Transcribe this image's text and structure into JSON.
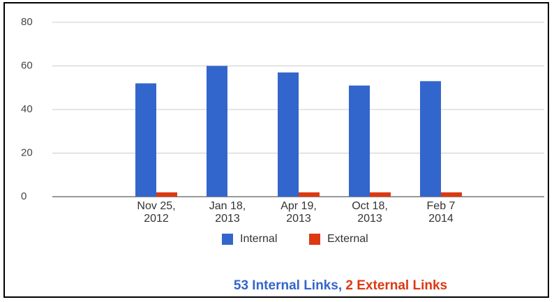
{
  "chart_data": {
    "type": "bar",
    "categories": [
      "Nov 25, 2012",
      "Jan 18, 2013",
      "Apr 19, 2013",
      "Oct 18, 2013",
      "Feb 7 2014"
    ],
    "series": [
      {
        "name": "Internal",
        "color": "#3366cc",
        "values": [
          52,
          60,
          57,
          51,
          53
        ]
      },
      {
        "name": "External",
        "color": "#dc3912",
        "values": [
          2,
          0,
          2,
          2,
          2
        ]
      }
    ],
    "ylim": [
      0,
      80
    ],
    "yticks": [
      0,
      20,
      40,
      60,
      80
    ],
    "grid": true,
    "legend": "bottom",
    "footer": {
      "internal": "53 Internal Links",
      "separator": ",",
      "external": "2 External Links"
    }
  }
}
